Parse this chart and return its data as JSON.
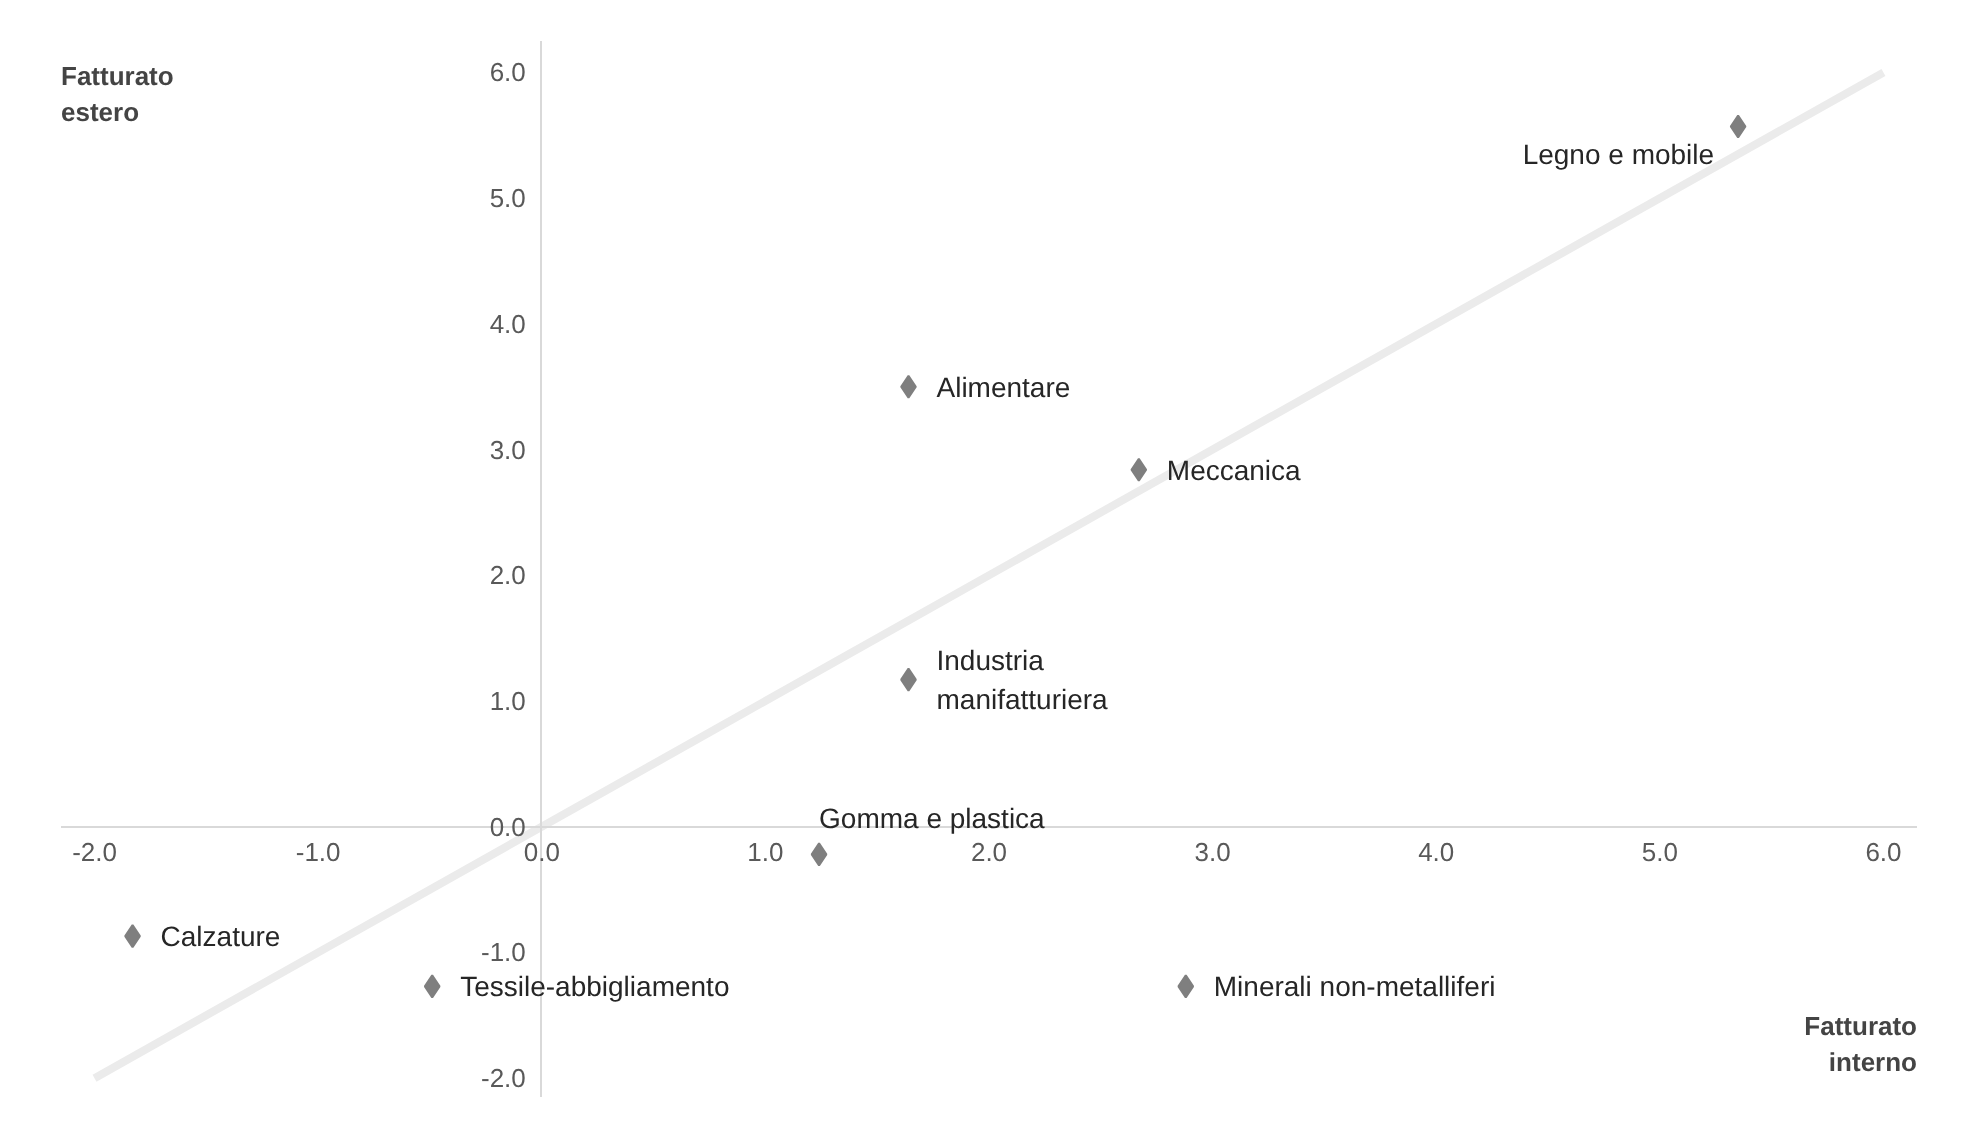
{
  "chart_data": {
    "type": "scatter",
    "xlabel": "Fatturato interno",
    "ylabel": "Fatturato estero",
    "xlim": [
      -2.15,
      6.15
    ],
    "ylim": [
      -2.15,
      6.25
    ],
    "xticks": [
      {
        "value": -2,
        "label": "-2.0"
      },
      {
        "value": -1,
        "label": "-1.0"
      },
      {
        "value": 0,
        "label": "0.0"
      },
      {
        "value": 1,
        "label": "1.0"
      },
      {
        "value": 2,
        "label": "2.0"
      },
      {
        "value": 3,
        "label": "3.0"
      },
      {
        "value": 4,
        "label": "4.0"
      },
      {
        "value": 5,
        "label": "5.0"
      },
      {
        "value": 6,
        "label": "6.0"
      }
    ],
    "yticks": [
      {
        "value": -2,
        "label": "-2.0"
      },
      {
        "value": -1,
        "label": "-1.0"
      },
      {
        "value": 0,
        "label": "0.0"
      },
      {
        "value": 1,
        "label": "1.0"
      },
      {
        "value": 2,
        "label": "2.0"
      },
      {
        "value": 3,
        "label": "3.0"
      },
      {
        "value": 4,
        "label": "4.0"
      },
      {
        "value": 5,
        "label": "5.0"
      },
      {
        "value": 6,
        "label": "6.0"
      }
    ],
    "grid": false,
    "marker": "diamond",
    "series": [
      {
        "color": "#7f7f7f",
        "x": [
          5.35,
          1.64,
          2.67,
          1.64,
          1.24,
          -1.83,
          -0.49,
          2.88
        ],
        "values": [
          5.57,
          3.5,
          2.84,
          1.17,
          -0.22,
          -0.87,
          -1.27,
          -1.27
        ]
      },
      {
        "type": "line",
        "marker": "none",
        "color": "#ebebeb",
        "x": [
          -2,
          6
        ],
        "values": [
          -2,
          6
        ]
      }
    ],
    "annotations": [
      {
        "text": "Legno e mobile",
        "x": 5.35,
        "y": 5.57
      },
      {
        "text": "Alimentare",
        "x": 1.64,
        "y": 3.5
      },
      {
        "text": "Meccanica",
        "x": 2.67,
        "y": 2.84
      },
      {
        "text": "Industria\nmanifatturiera",
        "x": 1.64,
        "y": 1.17
      },
      {
        "text": "Gomma e plastica",
        "x": 1.24,
        "y": -0.22
      },
      {
        "text": "Calzature",
        "x": -1.83,
        "y": -0.87
      },
      {
        "text": "Tessile-abbigliamento",
        "x": -0.49,
        "y": -1.27
      },
      {
        "text": "Minerali non-metalliferi",
        "x": 2.88,
        "y": -1.27
      }
    ]
  }
}
